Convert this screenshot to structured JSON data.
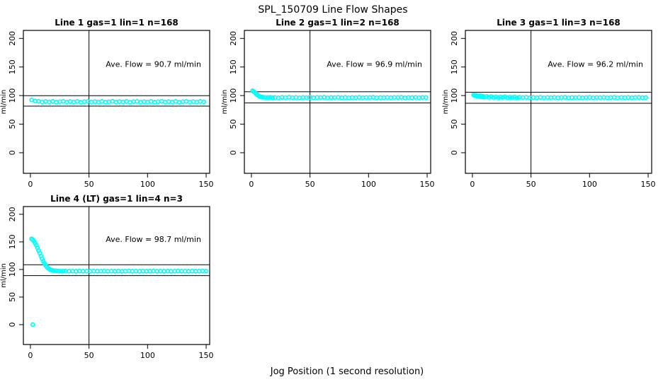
{
  "figure": {
    "title": "SPL_150709  Line Flow Shapes",
    "xlabel": "Jog Position (1 second resolution)"
  },
  "chart_data": {
    "type": "scatter",
    "title": "SPL_150709  Line Flow Shapes",
    "xlabel": "Jog Position (1 second resolution)",
    "ylabel": "ml/min",
    "x_ticks": [
      0,
      50,
      100,
      150
    ],
    "y_ticks": [
      0,
      50,
      100,
      150,
      200
    ],
    "xlim": [
      -6,
      153
    ],
    "ylim": [
      -36,
      214
    ],
    "grid": false,
    "legend": "none",
    "point_color": "#00FFFF",
    "line_color": "#000000",
    "panels": [
      {
        "title": "Line 1 gas=1 lin=1 n=168",
        "annotation": "Ave. Flow =  90.7  ml/min",
        "ave_flow": 90.7,
        "n": 168,
        "vline_x": 50,
        "hlines": [
          99.8,
          81.6
        ],
        "points": [
          [
            1,
            92.4
          ],
          [
            4,
            90.6
          ],
          [
            7,
            89.9
          ],
          [
            10,
            88.7
          ],
          [
            13,
            89.6
          ],
          [
            16,
            88.9
          ],
          [
            19,
            89.8
          ],
          [
            22,
            88.5
          ],
          [
            25,
            89.3
          ],
          [
            28,
            90.0
          ],
          [
            31,
            88.6
          ],
          [
            34,
            89.5
          ],
          [
            37,
            88.8
          ],
          [
            40,
            89.9
          ],
          [
            43,
            88.4
          ],
          [
            46,
            89.2
          ],
          [
            49,
            89.9
          ],
          [
            52,
            88.6
          ],
          [
            55,
            89.4
          ],
          [
            58,
            88.8
          ],
          [
            61,
            89.7
          ],
          [
            64,
            88.5
          ],
          [
            67,
            89.3
          ],
          [
            70,
            90.0
          ],
          [
            73,
            88.7
          ],
          [
            76,
            89.5
          ],
          [
            79,
            88.9
          ],
          [
            82,
            89.8
          ],
          [
            85,
            88.4
          ],
          [
            88,
            89.2
          ],
          [
            91,
            89.9
          ],
          [
            94,
            88.6
          ],
          [
            97,
            89.4
          ],
          [
            100,
            88.8
          ],
          [
            103,
            89.7
          ],
          [
            106,
            88.5
          ],
          [
            109,
            89.3
          ],
          [
            112,
            90.0
          ],
          [
            115,
            88.7
          ],
          [
            118,
            89.5
          ],
          [
            121,
            88.9
          ],
          [
            124,
            89.8
          ],
          [
            127,
            88.4
          ],
          [
            130,
            89.2
          ],
          [
            133,
            89.9
          ],
          [
            136,
            88.6
          ],
          [
            139,
            89.4
          ],
          [
            142,
            88.8
          ],
          [
            145,
            89.7
          ],
          [
            148,
            89.0
          ]
        ]
      },
      {
        "title": "Line 2 gas=1 lin=2 n=168",
        "annotation": "Ave. Flow =  96.9  ml/min",
        "ave_flow": 96.9,
        "n": 168,
        "vline_x": 50,
        "hlines": [
          106.6,
          87.2
        ],
        "points": [
          [
            1,
            108.5
          ],
          [
            2,
            107.0
          ],
          [
            3,
            105.2
          ],
          [
            4,
            103.1
          ],
          [
            5,
            101.3
          ],
          [
            6,
            99.9
          ],
          [
            7,
            98.8
          ],
          [
            8,
            98.0
          ],
          [
            9,
            97.4
          ],
          [
            10,
            97.0
          ],
          [
            12,
            96.7
          ],
          [
            14,
            96.5
          ],
          [
            16,
            96.9
          ],
          [
            18,
            96.3
          ],
          [
            20,
            96.8
          ],
          [
            23,
            96.2
          ],
          [
            26,
            96.9
          ],
          [
            29,
            96.4
          ],
          [
            32,
            97.0
          ],
          [
            35,
            96.3
          ],
          [
            38,
            96.8
          ],
          [
            41,
            96.2
          ],
          [
            44,
            96.7
          ],
          [
            47,
            96.4
          ],
          [
            50,
            96.9
          ],
          [
            53,
            96.3
          ],
          [
            56,
            96.8
          ],
          [
            59,
            96.5
          ],
          [
            62,
            96.9
          ],
          [
            65,
            96.2
          ],
          [
            68,
            96.7
          ],
          [
            71,
            96.4
          ],
          [
            74,
            96.9
          ],
          [
            77,
            96.3
          ],
          [
            80,
            96.8
          ],
          [
            83,
            96.2
          ],
          [
            86,
            96.6
          ],
          [
            89,
            96.4
          ],
          [
            92,
            96.9
          ],
          [
            95,
            96.3
          ],
          [
            98,
            96.7
          ],
          [
            101,
            96.5
          ],
          [
            104,
            96.9
          ],
          [
            107,
            96.2
          ],
          [
            110,
            96.6
          ],
          [
            113,
            96.4
          ],
          [
            116,
            96.8
          ],
          [
            119,
            96.3
          ],
          [
            122,
            96.7
          ],
          [
            125,
            96.5
          ],
          [
            128,
            96.9
          ],
          [
            131,
            96.2
          ],
          [
            134,
            96.6
          ],
          [
            137,
            96.4
          ],
          [
            140,
            96.8
          ],
          [
            143,
            96.3
          ],
          [
            146,
            96.7
          ],
          [
            149,
            96.5
          ]
        ]
      },
      {
        "title": "Line 3 gas=1 lin=3 n=168",
        "annotation": "Ave. Flow =  96.2  ml/min",
        "ave_flow": 96.2,
        "n": 168,
        "vline_x": 50,
        "hlines": [
          105.8,
          86.6
        ],
        "points": [
          [
            1,
            101.2
          ],
          [
            2,
            99.8
          ],
          [
            3,
            100.5
          ],
          [
            4,
            98.9
          ],
          [
            5,
            99.5
          ],
          [
            6,
            98.2
          ],
          [
            7,
            99.9
          ],
          [
            8,
            97.8
          ],
          [
            9,
            98.8
          ],
          [
            10,
            97.4
          ],
          [
            12,
            98.5
          ],
          [
            14,
            97.0
          ],
          [
            16,
            98.1
          ],
          [
            18,
            96.8
          ],
          [
            20,
            97.7
          ],
          [
            22,
            96.5
          ],
          [
            24,
            97.3
          ],
          [
            26,
            96.9
          ],
          [
            28,
            97.8
          ],
          [
            30,
            96.4
          ],
          [
            32,
            97.1
          ],
          [
            34,
            96.7
          ],
          [
            36,
            97.5
          ],
          [
            38,
            96.3
          ],
          [
            40,
            97.0
          ],
          [
            43,
            96.6
          ],
          [
            46,
            96.9
          ],
          [
            49,
            96.3
          ],
          [
            52,
            96.8
          ],
          [
            55,
            96.4
          ],
          [
            58,
            96.9
          ],
          [
            61,
            96.2
          ],
          [
            64,
            96.7
          ],
          [
            67,
            96.4
          ],
          [
            70,
            96.8
          ],
          [
            73,
            96.3
          ],
          [
            76,
            96.6
          ],
          [
            79,
            96.9
          ],
          [
            82,
            96.2
          ],
          [
            85,
            96.7
          ],
          [
            88,
            96.4
          ],
          [
            91,
            96.8
          ],
          [
            94,
            96.3
          ],
          [
            97,
            96.6
          ],
          [
            100,
            96.9
          ],
          [
            103,
            96.2
          ],
          [
            106,
            96.7
          ],
          [
            109,
            96.4
          ],
          [
            112,
            96.8
          ],
          [
            115,
            96.3
          ],
          [
            118,
            96.6
          ],
          [
            121,
            96.9
          ],
          [
            124,
            96.2
          ],
          [
            127,
            96.7
          ],
          [
            130,
            96.4
          ],
          [
            133,
            96.8
          ],
          [
            136,
            96.3
          ],
          [
            139,
            96.6
          ],
          [
            142,
            96.9
          ],
          [
            145,
            96.4
          ],
          [
            148,
            96.6
          ]
        ]
      },
      {
        "title": "Line 4 (LT) gas=1 lin=4 n=3",
        "annotation": "Ave. Flow =  98.7  ml/min",
        "ave_flow": 98.7,
        "n": 3,
        "vline_x": 50,
        "hlines": [
          108.6,
          88.8
        ],
        "points": [
          [
            2,
            0
          ],
          [
            1,
            155.5
          ],
          [
            2,
            154.0
          ],
          [
            3,
            151.5
          ],
          [
            4,
            148.0
          ],
          [
            5,
            144.0
          ],
          [
            6,
            139.5
          ],
          [
            7,
            134.5
          ],
          [
            8,
            129.5
          ],
          [
            9,
            124.5
          ],
          [
            10,
            119.5
          ],
          [
            11,
            115.0
          ],
          [
            12,
            111.0
          ],
          [
            13,
            107.5
          ],
          [
            14,
            104.8
          ],
          [
            15,
            102.6
          ],
          [
            16,
            101.0
          ],
          [
            17,
            99.8
          ],
          [
            18,
            98.9
          ],
          [
            19,
            98.3
          ],
          [
            20,
            97.9
          ],
          [
            22,
            97.5
          ],
          [
            24,
            97.2
          ],
          [
            26,
            97.0
          ],
          [
            28,
            96.9
          ],
          [
            30,
            97.2
          ],
          [
            33,
            96.8
          ],
          [
            36,
            97.1
          ],
          [
            39,
            96.7
          ],
          [
            42,
            97.3
          ],
          [
            45,
            96.8
          ],
          [
            48,
            97.1
          ],
          [
            51,
            96.7
          ],
          [
            54,
            97.2
          ],
          [
            57,
            96.8
          ],
          [
            60,
            97.0
          ],
          [
            63,
            97.3
          ],
          [
            66,
            96.7
          ],
          [
            69,
            97.1
          ],
          [
            72,
            96.8
          ],
          [
            75,
            97.2
          ],
          [
            78,
            96.7
          ],
          [
            81,
            97.0
          ],
          [
            84,
            97.3
          ],
          [
            87,
            96.8
          ],
          [
            90,
            97.1
          ],
          [
            93,
            96.7
          ],
          [
            96,
            97.2
          ],
          [
            99,
            96.8
          ],
          [
            102,
            97.0
          ],
          [
            105,
            97.3
          ],
          [
            108,
            96.7
          ],
          [
            111,
            97.1
          ],
          [
            114,
            96.8
          ],
          [
            117,
            97.2
          ],
          [
            120,
            96.7
          ],
          [
            123,
            97.0
          ],
          [
            126,
            97.3
          ],
          [
            129,
            96.8
          ],
          [
            132,
            97.1
          ],
          [
            135,
            96.7
          ],
          [
            138,
            97.2
          ],
          [
            141,
            96.8
          ],
          [
            144,
            97.0
          ],
          [
            147,
            97.3
          ],
          [
            150,
            96.9
          ]
        ]
      }
    ]
  }
}
